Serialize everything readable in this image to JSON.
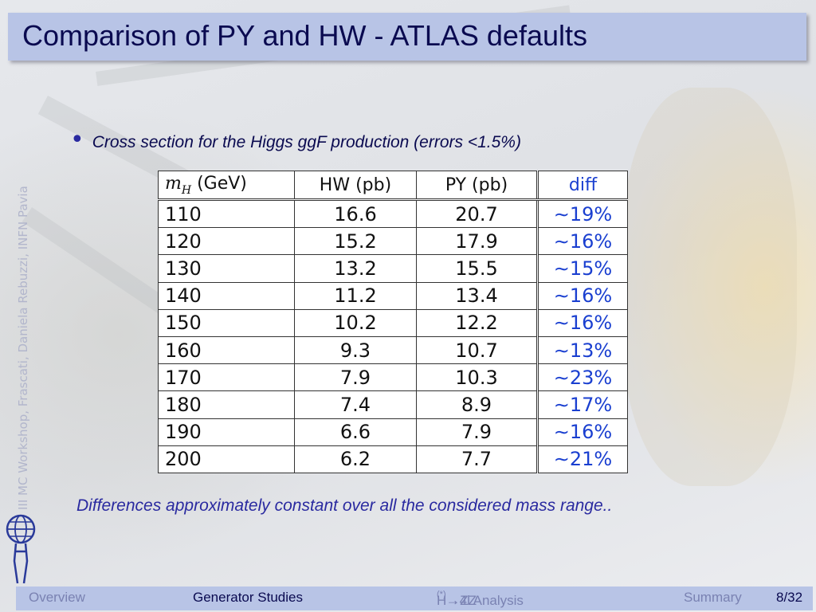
{
  "slide": {
    "title": "Comparison of PY and HW - ATLAS defaults",
    "side_label": "III MC Workshop, Frascati, Daniela Rebuzzi, INFN Pavia",
    "bullet": "Cross section for the Higgs ggF production (errors <1.5%)",
    "note": "Differences approximately constant over all the considered mass range.."
  },
  "table": {
    "headers": {
      "mh_symbol": "m",
      "mh_sub": "H",
      "mh_unit": "(GeV)",
      "hw": "HW (pb)",
      "py": "PY (pb)",
      "diff": "diff"
    },
    "rows": [
      {
        "mh": "110",
        "hw": "16.6",
        "py": "20.7",
        "diff": "∼19%"
      },
      {
        "mh": "120",
        "hw": "15.2",
        "py": "17.9",
        "diff": "∼16%"
      },
      {
        "mh": "130",
        "hw": "13.2",
        "py": "15.5",
        "diff": "∼15%"
      },
      {
        "mh": "140",
        "hw": "11.2",
        "py": "13.4",
        "diff": "∼16%"
      },
      {
        "mh": "150",
        "hw": "10.2",
        "py": "12.2",
        "diff": "∼16%"
      },
      {
        "mh": "160",
        "hw": "9.3",
        "py": "10.7",
        "diff": "∼13%"
      },
      {
        "mh": "170",
        "hw": "7.9",
        "py": "10.3",
        "diff": "∼23%"
      },
      {
        "mh": "180",
        "hw": "7.4",
        "py": "8.9",
        "diff": "∼17%"
      },
      {
        "mh": "190",
        "hw": "6.6",
        "py": "7.9",
        "diff": "∼16%"
      },
      {
        "mh": "200",
        "hw": "6.2",
        "py": "7.7",
        "diff": "∼21%"
      }
    ]
  },
  "footer": {
    "overview": "Overview",
    "generator_studies": "Generator Studies",
    "analysis_prefix": "H→ZZ",
    "analysis_sup": "(*)",
    "analysis_suffix": "→4l Analysis",
    "summary": "Summary",
    "page": "8/32"
  },
  "colors": {
    "title_bar": "#b8c4e6",
    "title_text": "#0a0a50",
    "diff_text": "#1a3fd0",
    "note_text": "#2a2aa0"
  },
  "icons": {
    "logo": "atlas-logo-icon"
  }
}
